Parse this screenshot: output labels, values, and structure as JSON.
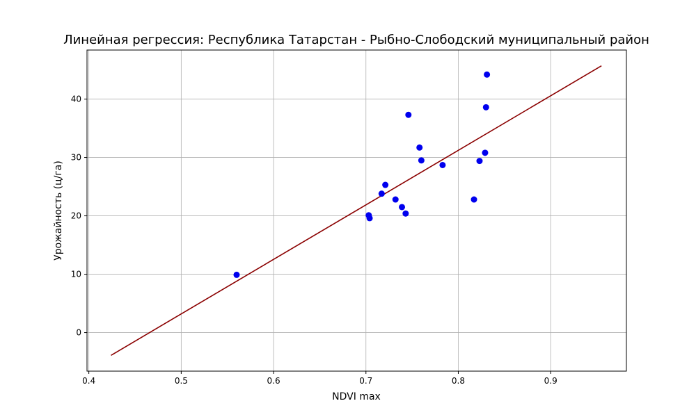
{
  "chart_data": {
    "type": "scatter",
    "title": "Линейная регрессия: Республика Татарстан - Рыбно-Слободский муниципальный район",
    "xlabel": "NDVI max",
    "ylabel": "Урожайность (ц/га)",
    "xlim": [
      0.398,
      0.982
    ],
    "ylim": [
      -6.6,
      48.4
    ],
    "grid": true,
    "xticks": [
      0.4,
      0.5,
      0.6,
      0.7,
      0.8,
      0.9
    ],
    "xtick_labels": [
      "0.4",
      "0.5",
      "0.6",
      "0.7",
      "0.8",
      "0.9"
    ],
    "yticks": [
      0,
      10,
      20,
      30,
      40
    ],
    "ytick_labels": [
      "0",
      "10",
      "20",
      "30",
      "40"
    ],
    "points": {
      "color": "#0000ee",
      "x": [
        0.56,
        0.703,
        0.704,
        0.717,
        0.721,
        0.732,
        0.739,
        0.743,
        0.746,
        0.758,
        0.76,
        0.783,
        0.817,
        0.823,
        0.829,
        0.83,
        0.831
      ],
      "y": [
        9.9,
        20.1,
        19.6,
        23.8,
        25.3,
        22.8,
        21.5,
        20.4,
        37.3,
        31.7,
        29.5,
        28.7,
        22.8,
        29.4,
        30.8,
        38.6,
        44.2
      ]
    },
    "regression": {
      "color": "#8b0000",
      "x": [
        0.424,
        0.955
      ],
      "y": [
        -3.9,
        45.7
      ]
    }
  }
}
